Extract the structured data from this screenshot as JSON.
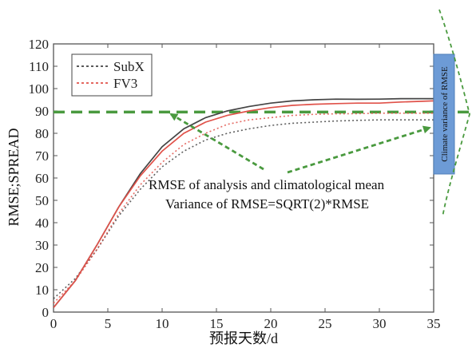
{
  "chart_data": {
    "type": "line",
    "xlabel": "预报天数/d",
    "ylabel": "RMSE;SPREAD",
    "xlim": [
      0,
      35
    ],
    "ylim": [
      0,
      120
    ],
    "xticks": [
      0,
      5,
      10,
      15,
      20,
      25,
      30,
      35
    ],
    "yticks": [
      0,
      10,
      20,
      30,
      40,
      50,
      60,
      70,
      80,
      90,
      100,
      110,
      120
    ],
    "grid": false,
    "legend_position": "top-left",
    "series": [
      {
        "name": "SubX",
        "color": "#444444",
        "rmse": [
          [
            0,
            2
          ],
          [
            2,
            14
          ],
          [
            4,
            30
          ],
          [
            6,
            47
          ],
          [
            8,
            62
          ],
          [
            10,
            74
          ],
          [
            12,
            82
          ],
          [
            14,
            87
          ],
          [
            16,
            90
          ],
          [
            18,
            92
          ],
          [
            20,
            93.5
          ],
          [
            22,
            94.5
          ],
          [
            24,
            95
          ],
          [
            26,
            95.3
          ],
          [
            28,
            95.2
          ],
          [
            30,
            95.3
          ],
          [
            32,
            95.5
          ],
          [
            35,
            95.5
          ]
        ],
        "spread": [
          [
            0,
            6
          ],
          [
            2,
            15
          ],
          [
            4,
            28
          ],
          [
            6,
            43
          ],
          [
            8,
            55
          ],
          [
            10,
            65
          ],
          [
            12,
            72
          ],
          [
            14,
            77
          ],
          [
            16,
            80
          ],
          [
            18,
            82
          ],
          [
            20,
            83.5
          ],
          [
            22,
            84.5
          ],
          [
            24,
            85
          ],
          [
            26,
            85.5
          ],
          [
            28,
            85.8
          ],
          [
            30,
            86
          ],
          [
            32,
            86
          ],
          [
            35,
            86
          ]
        ]
      },
      {
        "name": "FV3",
        "color": "#e0524a",
        "rmse": [
          [
            0,
            2
          ],
          [
            2,
            14
          ],
          [
            4,
            30
          ],
          [
            6,
            47
          ],
          [
            8,
            61
          ],
          [
            10,
            72
          ],
          [
            12,
            80
          ],
          [
            14,
            85
          ],
          [
            16,
            88
          ],
          [
            18,
            90
          ],
          [
            20,
            91.5
          ],
          [
            22,
            92.5
          ],
          [
            24,
            93
          ],
          [
            26,
            93.3
          ],
          [
            28,
            93.5
          ],
          [
            30,
            93.5
          ],
          [
            32,
            94
          ],
          [
            35,
            94.5
          ]
        ],
        "spread": [
          [
            0,
            4
          ],
          [
            2,
            14
          ],
          [
            4,
            28
          ],
          [
            6,
            44
          ],
          [
            8,
            57
          ],
          [
            10,
            67
          ],
          [
            12,
            75
          ],
          [
            14,
            80
          ],
          [
            16,
            84
          ],
          [
            18,
            86
          ],
          [
            20,
            87
          ],
          [
            22,
            88
          ],
          [
            24,
            88.5
          ],
          [
            26,
            88.7
          ],
          [
            28,
            88.8
          ],
          [
            30,
            89
          ],
          [
            32,
            89
          ],
          [
            35,
            89
          ]
        ]
      }
    ],
    "reference_line": {
      "y": 89.5,
      "color": "#4a9a3f"
    },
    "annotations": [
      "RMSE of analysis and climatological mean",
      "Variance of RMSE=SQRT(2)*RMSE"
    ],
    "side_label": "Climate variance of RMSE",
    "side_bar_color": "#6d9bd6",
    "annotation_color": "#4a9a3f"
  }
}
